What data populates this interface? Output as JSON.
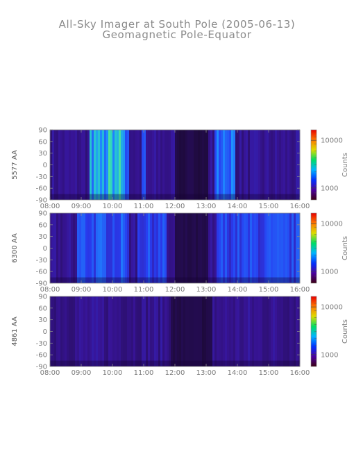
{
  "title": "All-Sky Imager at South Pole (2005-06-13)",
  "subtitle": "Geomagnetic Pole-Equator",
  "colors": {
    "ticks": "#7a7a7a",
    "colorbar": [
      "#3c0014",
      "#4b00a0",
      "#0032ff",
      "#00b4ff",
      "#00dc64",
      "#dcdc00",
      "#ff7800",
      "#e60000"
    ]
  },
  "chart_data": [
    {
      "type": "heatmap",
      "ylabel": "5577 AA",
      "colorbar_label": "Counts",
      "colorbar_ticks": [
        "10000",
        "1000"
      ],
      "x_ticks": [
        "08:00",
        "09:00",
        "10:00",
        "11:00",
        "12:00",
        "13:00",
        "14:00",
        "15:00",
        "16:00"
      ],
      "y_ticks": [
        "90",
        "60",
        "30",
        "0",
        "-30",
        "-60",
        "-90"
      ],
      "xlim": [
        "08:00",
        "16:00"
      ],
      "ylim": [
        -90,
        90
      ],
      "bright_intervals": [
        {
          "start": "09:15",
          "end": "09:50",
          "level": 0.78
        },
        {
          "start": "09:50",
          "end": "10:20",
          "level": 0.92
        },
        {
          "start": "10:20",
          "end": "10:28",
          "level": 0.65
        },
        {
          "start": "10:55",
          "end": "11:00",
          "level": 0.55
        },
        {
          "start": "13:15",
          "end": "13:55",
          "level": 0.7
        }
      ],
      "dark_interval": {
        "start": "12:00",
        "end": "13:00"
      }
    },
    {
      "type": "heatmap",
      "ylabel": "6300 AA",
      "colorbar_label": "Counts",
      "colorbar_ticks": [
        "10000",
        "1000"
      ],
      "x_ticks": [
        "08:00",
        "09:00",
        "10:00",
        "11:00",
        "12:00",
        "13:00",
        "14:00",
        "15:00",
        "16:00"
      ],
      "y_ticks": [
        "90",
        "60",
        "30",
        "0",
        "-30",
        "-60",
        "-90"
      ],
      "xlim": [
        "08:00",
        "16:00"
      ],
      "ylim": [
        -90,
        90
      ],
      "bright_intervals": [
        {
          "start": "08:50",
          "end": "10:30",
          "level": 0.55
        },
        {
          "start": "10:45",
          "end": "11:40",
          "level": 0.5
        },
        {
          "start": "13:20",
          "end": "16:00",
          "level": 0.5
        }
      ],
      "dark_interval": {
        "start": "12:00",
        "end": "13:00"
      }
    },
    {
      "type": "heatmap",
      "ylabel": "4861 AA",
      "colorbar_label": "Counts",
      "colorbar_ticks": [
        "10000",
        "1000"
      ],
      "x_ticks": [
        "08:00",
        "09:00",
        "10:00",
        "11:00",
        "12:00",
        "13:00",
        "14:00",
        "15:00",
        "16:00"
      ],
      "y_ticks": [
        "90",
        "60",
        "30",
        "0",
        "-30",
        "-60",
        "-90"
      ],
      "xlim": [
        "08:00",
        "16:00"
      ],
      "ylim": [
        -90,
        90
      ],
      "bright_intervals": [],
      "dark_interval": {
        "start": "11:50",
        "end": "13:10"
      }
    }
  ]
}
